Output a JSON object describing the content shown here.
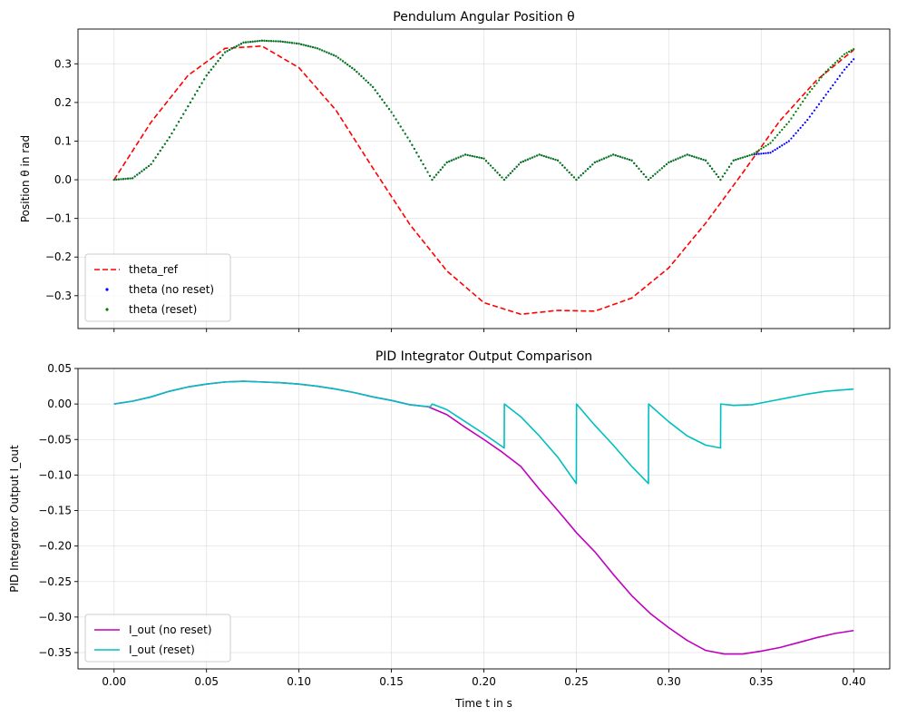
{
  "chart_data": [
    {
      "type": "line",
      "title": "Pendulum Angular Position θ",
      "xlabel": "",
      "ylabel": "Position θ in rad",
      "xlim": [
        -0.0195,
        0.4195
      ],
      "ylim": [
        -0.385,
        0.39
      ],
      "xticks": [
        0.0,
        0.05,
        0.1,
        0.15,
        0.2,
        0.25,
        0.3,
        0.35,
        0.4
      ],
      "xtick_labels_visible": false,
      "yticks": [
        -0.3,
        -0.2,
        -0.1,
        0.0,
        0.1,
        0.2,
        0.3
      ],
      "ytick_labels": [
        "−0.3",
        "−0.2",
        "−0.1",
        "0.0",
        "0.1",
        "0.2",
        "0.3"
      ],
      "grid": true,
      "legend": "lower-left",
      "series": [
        {
          "name": "theta_ref",
          "style": "dashed",
          "color": "#ff0000",
          "x": [
            0.0,
            0.02,
            0.04,
            0.06,
            0.08,
            0.1,
            0.12,
            0.14,
            0.16,
            0.18,
            0.2,
            0.22,
            0.24,
            0.26,
            0.28,
            0.3,
            0.32,
            0.34,
            0.36,
            0.38,
            0.4
          ],
          "y": [
            0.0,
            0.149,
            0.27,
            0.34,
            0.346,
            0.29,
            0.18,
            0.03,
            -0.116,
            -0.236,
            -0.318,
            -0.348,
            -0.338,
            -0.34,
            -0.306,
            -0.228,
            -0.112,
            0.018,
            0.152,
            0.258,
            0.336
          ]
        },
        {
          "name": "theta (no reset)",
          "style": "dots",
          "color": "#0000ff",
          "x": [
            0.0,
            0.01,
            0.02,
            0.03,
            0.04,
            0.05,
            0.06,
            0.07,
            0.08,
            0.09,
            0.1,
            0.11,
            0.12,
            0.13,
            0.14,
            0.15,
            0.16,
            0.172,
            0.18,
            0.19,
            0.2,
            0.211,
            0.22,
            0.23,
            0.24,
            0.25,
            0.26,
            0.27,
            0.28,
            0.289,
            0.3,
            0.31,
            0.32,
            0.328,
            0.335,
            0.345,
            0.355,
            0.365,
            0.375,
            0.385,
            0.395,
            0.4
          ],
          "y": [
            0.0,
            0.004,
            0.04,
            0.11,
            0.19,
            0.27,
            0.33,
            0.355,
            0.36,
            0.358,
            0.352,
            0.34,
            0.32,
            0.285,
            0.24,
            0.175,
            0.1,
            0.0,
            0.045,
            0.065,
            0.055,
            0.0,
            0.045,
            0.065,
            0.05,
            0.0,
            0.045,
            0.065,
            0.05,
            0.0,
            0.045,
            0.065,
            0.05,
            0.0,
            0.05,
            0.065,
            0.07,
            0.1,
            0.155,
            0.22,
            0.285,
            0.312
          ]
        },
        {
          "name": "theta (reset)",
          "style": "dots",
          "color": "#008000",
          "x": [
            0.0,
            0.01,
            0.02,
            0.03,
            0.04,
            0.05,
            0.06,
            0.07,
            0.08,
            0.09,
            0.1,
            0.11,
            0.12,
            0.13,
            0.14,
            0.15,
            0.16,
            0.172,
            0.18,
            0.19,
            0.2,
            0.211,
            0.22,
            0.23,
            0.24,
            0.25,
            0.26,
            0.27,
            0.28,
            0.289,
            0.3,
            0.31,
            0.32,
            0.328,
            0.335,
            0.345,
            0.355,
            0.365,
            0.375,
            0.385,
            0.395,
            0.4
          ],
          "y": [
            0.0,
            0.004,
            0.04,
            0.11,
            0.19,
            0.27,
            0.33,
            0.355,
            0.36,
            0.358,
            0.352,
            0.34,
            0.32,
            0.285,
            0.24,
            0.175,
            0.1,
            0.0,
            0.045,
            0.065,
            0.055,
            0.0,
            0.045,
            0.065,
            0.05,
            0.0,
            0.045,
            0.065,
            0.05,
            0.0,
            0.045,
            0.065,
            0.05,
            0.0,
            0.05,
            0.065,
            0.095,
            0.15,
            0.22,
            0.28,
            0.325,
            0.338
          ]
        }
      ]
    },
    {
      "type": "line",
      "title": "PID Integrator Output Comparison",
      "xlabel": "Time t in s",
      "ylabel": "PID Integrator Output I_out",
      "xlim": [
        -0.0195,
        0.4195
      ],
      "ylim": [
        -0.373,
        0.05
      ],
      "xticks": [
        0.0,
        0.05,
        0.1,
        0.15,
        0.2,
        0.25,
        0.3,
        0.35,
        0.4
      ],
      "xtick_labels": [
        "0.00",
        "0.05",
        "0.10",
        "0.15",
        "0.20",
        "0.25",
        "0.30",
        "0.35",
        "0.40"
      ],
      "yticks": [
        -0.35,
        -0.3,
        -0.25,
        -0.2,
        -0.15,
        -0.1,
        -0.05,
        0.0,
        0.05
      ],
      "ytick_labels": [
        "−0.35",
        "−0.30",
        "−0.25",
        "−0.20",
        "−0.15",
        "−0.10",
        "−0.05",
        "0.00",
        "0.05"
      ],
      "grid": true,
      "legend": "lower-left",
      "series": [
        {
          "name": "I_out (no reset)",
          "style": "solid",
          "color": "#bf00bf",
          "x": [
            0.0,
            0.01,
            0.02,
            0.03,
            0.04,
            0.05,
            0.06,
            0.07,
            0.08,
            0.09,
            0.1,
            0.11,
            0.12,
            0.13,
            0.14,
            0.15,
            0.16,
            0.17,
            0.18,
            0.19,
            0.2,
            0.21,
            0.22,
            0.23,
            0.24,
            0.25,
            0.26,
            0.27,
            0.28,
            0.29,
            0.3,
            0.31,
            0.32,
            0.33,
            0.34,
            0.35,
            0.36,
            0.37,
            0.38,
            0.39,
            0.4
          ],
          "y": [
            0.0,
            0.004,
            0.01,
            0.018,
            0.024,
            0.028,
            0.031,
            0.032,
            0.031,
            0.03,
            0.028,
            0.025,
            0.021,
            0.016,
            0.01,
            0.005,
            -0.001,
            -0.004,
            -0.015,
            -0.033,
            -0.05,
            -0.068,
            -0.088,
            -0.12,
            -0.15,
            -0.181,
            -0.208,
            -0.24,
            -0.27,
            -0.295,
            -0.315,
            -0.333,
            -0.347,
            -0.352,
            -0.352,
            -0.348,
            -0.343,
            -0.336,
            -0.329,
            -0.323,
            -0.319
          ]
        },
        {
          "name": "I_out (reset)",
          "style": "solid",
          "color": "#00bfbf",
          "x": [
            0.0,
            0.01,
            0.02,
            0.03,
            0.04,
            0.05,
            0.06,
            0.07,
            0.08,
            0.09,
            0.1,
            0.11,
            0.12,
            0.13,
            0.14,
            0.15,
            0.16,
            0.171,
            0.172,
            0.18,
            0.19,
            0.2,
            0.211,
            0.2111,
            0.22,
            0.23,
            0.24,
            0.25,
            0.2501,
            0.26,
            0.27,
            0.28,
            0.289,
            0.2891,
            0.3,
            0.31,
            0.32,
            0.328,
            0.3281,
            0.335,
            0.345,
            0.355,
            0.365,
            0.375,
            0.385,
            0.395,
            0.4
          ],
          "y": [
            0.0,
            0.004,
            0.01,
            0.018,
            0.024,
            0.028,
            0.031,
            0.032,
            0.031,
            0.03,
            0.028,
            0.025,
            0.021,
            0.016,
            0.01,
            0.005,
            -0.001,
            -0.004,
            0.0,
            -0.008,
            -0.025,
            -0.042,
            -0.062,
            0.0,
            -0.018,
            -0.045,
            -0.075,
            -0.112,
            0.0,
            -0.03,
            -0.058,
            -0.088,
            -0.112,
            0.0,
            -0.025,
            -0.045,
            -0.058,
            -0.062,
            0.0,
            -0.002,
            -0.001,
            0.004,
            0.009,
            0.014,
            0.018,
            0.02,
            0.021
          ]
        }
      ]
    }
  ]
}
